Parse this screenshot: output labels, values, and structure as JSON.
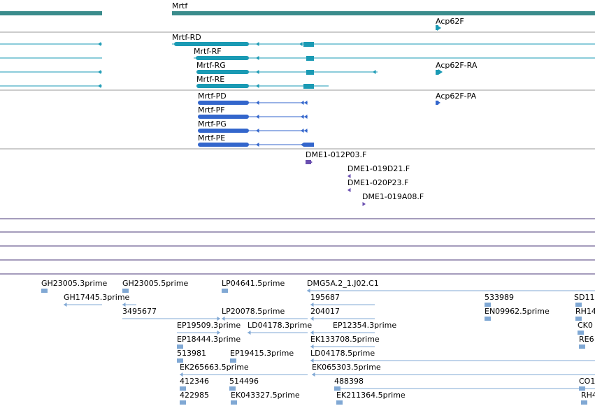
{
  "colors": {
    "gene": "#3a8c8c",
    "transcript": "#1a9ab4",
    "protein": "#3366cc",
    "clone": "#6a4fb0",
    "est": "#80a8d4",
    "separator": "#9a9a9a",
    "empty_track": "#4b3a78"
  },
  "genes": [
    {
      "id": "g0",
      "label": "",
      "strand": "+"
    },
    {
      "id": "g1",
      "label": "Mrtf",
      "strand": "-"
    },
    {
      "id": "g2",
      "label": "Acp62F",
      "strand": "+"
    }
  ],
  "transcripts": [
    {
      "id": "t0",
      "label": "",
      "strand": "-"
    },
    {
      "id": "t1",
      "label": "",
      "strand": "-"
    },
    {
      "id": "t2",
      "label": "",
      "strand": "-"
    },
    {
      "id": "t3",
      "label": "",
      "strand": "-"
    },
    {
      "id": "t4",
      "label": "Mrtf-RD",
      "strand": "-"
    },
    {
      "id": "t5",
      "label": "Mrtf-RF",
      "strand": "-"
    },
    {
      "id": "t6",
      "label": "Mrtf-RG",
      "strand": "-"
    },
    {
      "id": "t7",
      "label": "Mrtf-RE",
      "strand": "-"
    },
    {
      "id": "t8",
      "label": "Acp62F-RA",
      "strand": "+"
    }
  ],
  "proteins": [
    {
      "id": "p0",
      "label": "Mrtf-PD",
      "strand": "-"
    },
    {
      "id": "p1",
      "label": "Mrtf-PF",
      "strand": "-"
    },
    {
      "id": "p2",
      "label": "Mrtf-PG",
      "strand": "-"
    },
    {
      "id": "p3",
      "label": "Mrtf-PE",
      "strand": "-"
    },
    {
      "id": "p4",
      "label": "Acp62F-PA",
      "strand": "+"
    }
  ],
  "clones": [
    {
      "id": "c0",
      "label": "DME1-012P03.F",
      "strand": "+"
    },
    {
      "id": "c1",
      "label": "DME1-019D21.F",
      "strand": "-"
    },
    {
      "id": "c2",
      "label": "DME1-020P23.F",
      "strand": "-"
    },
    {
      "id": "c3",
      "label": "DME1-019A08.F",
      "strand": "+"
    }
  ],
  "ests": [
    {
      "id": "e0",
      "label": "GH23005.3prime"
    },
    {
      "id": "e1",
      "label": "GH23005.5prime"
    },
    {
      "id": "e2",
      "label": "LP04641.5prime"
    },
    {
      "id": "e3",
      "label": "DMG5A.2_1.J02.C1"
    },
    {
      "id": "e4",
      "label": "GH17445.3prime"
    },
    {
      "id": "e5",
      "label": "195687"
    },
    {
      "id": "e6",
      "label": "533989"
    },
    {
      "id": "e7",
      "label": "SD11"
    },
    {
      "id": "e8",
      "label": "3495677"
    },
    {
      "id": "e9",
      "label": "LP20078.5prime"
    },
    {
      "id": "e10",
      "label": "204017"
    },
    {
      "id": "e11",
      "label": "EN09962.5prime"
    },
    {
      "id": "e12",
      "label": "RH14"
    },
    {
      "id": "e13",
      "label": "EP19509.3prime"
    },
    {
      "id": "e14",
      "label": "LD04178.3prime"
    },
    {
      "id": "e15",
      "label": "EP12354.3prime"
    },
    {
      "id": "e16",
      "label": "CK0"
    },
    {
      "id": "e17",
      "label": "EP18444.3prime"
    },
    {
      "id": "e18",
      "label": "EK133708.5prime"
    },
    {
      "id": "e19",
      "label": "RE6"
    },
    {
      "id": "e20",
      "label": "513981"
    },
    {
      "id": "e21",
      "label": "EP19415.3prime"
    },
    {
      "id": "e22",
      "label": "LD04178.5prime"
    },
    {
      "id": "e23",
      "label": "EK265663.5prime"
    },
    {
      "id": "e24",
      "label": "EK065303.5prime"
    },
    {
      "id": "e25",
      "label": "412346"
    },
    {
      "id": "e26",
      "label": "514496"
    },
    {
      "id": "e27",
      "label": "488398"
    },
    {
      "id": "e28",
      "label": "CO1"
    },
    {
      "id": "e29",
      "label": "422985"
    },
    {
      "id": "e30",
      "label": "EK043327.5prime"
    },
    {
      "id": "e31",
      "label": "EK211364.5prime"
    },
    {
      "id": "e32",
      "label": "RH4"
    }
  ]
}
